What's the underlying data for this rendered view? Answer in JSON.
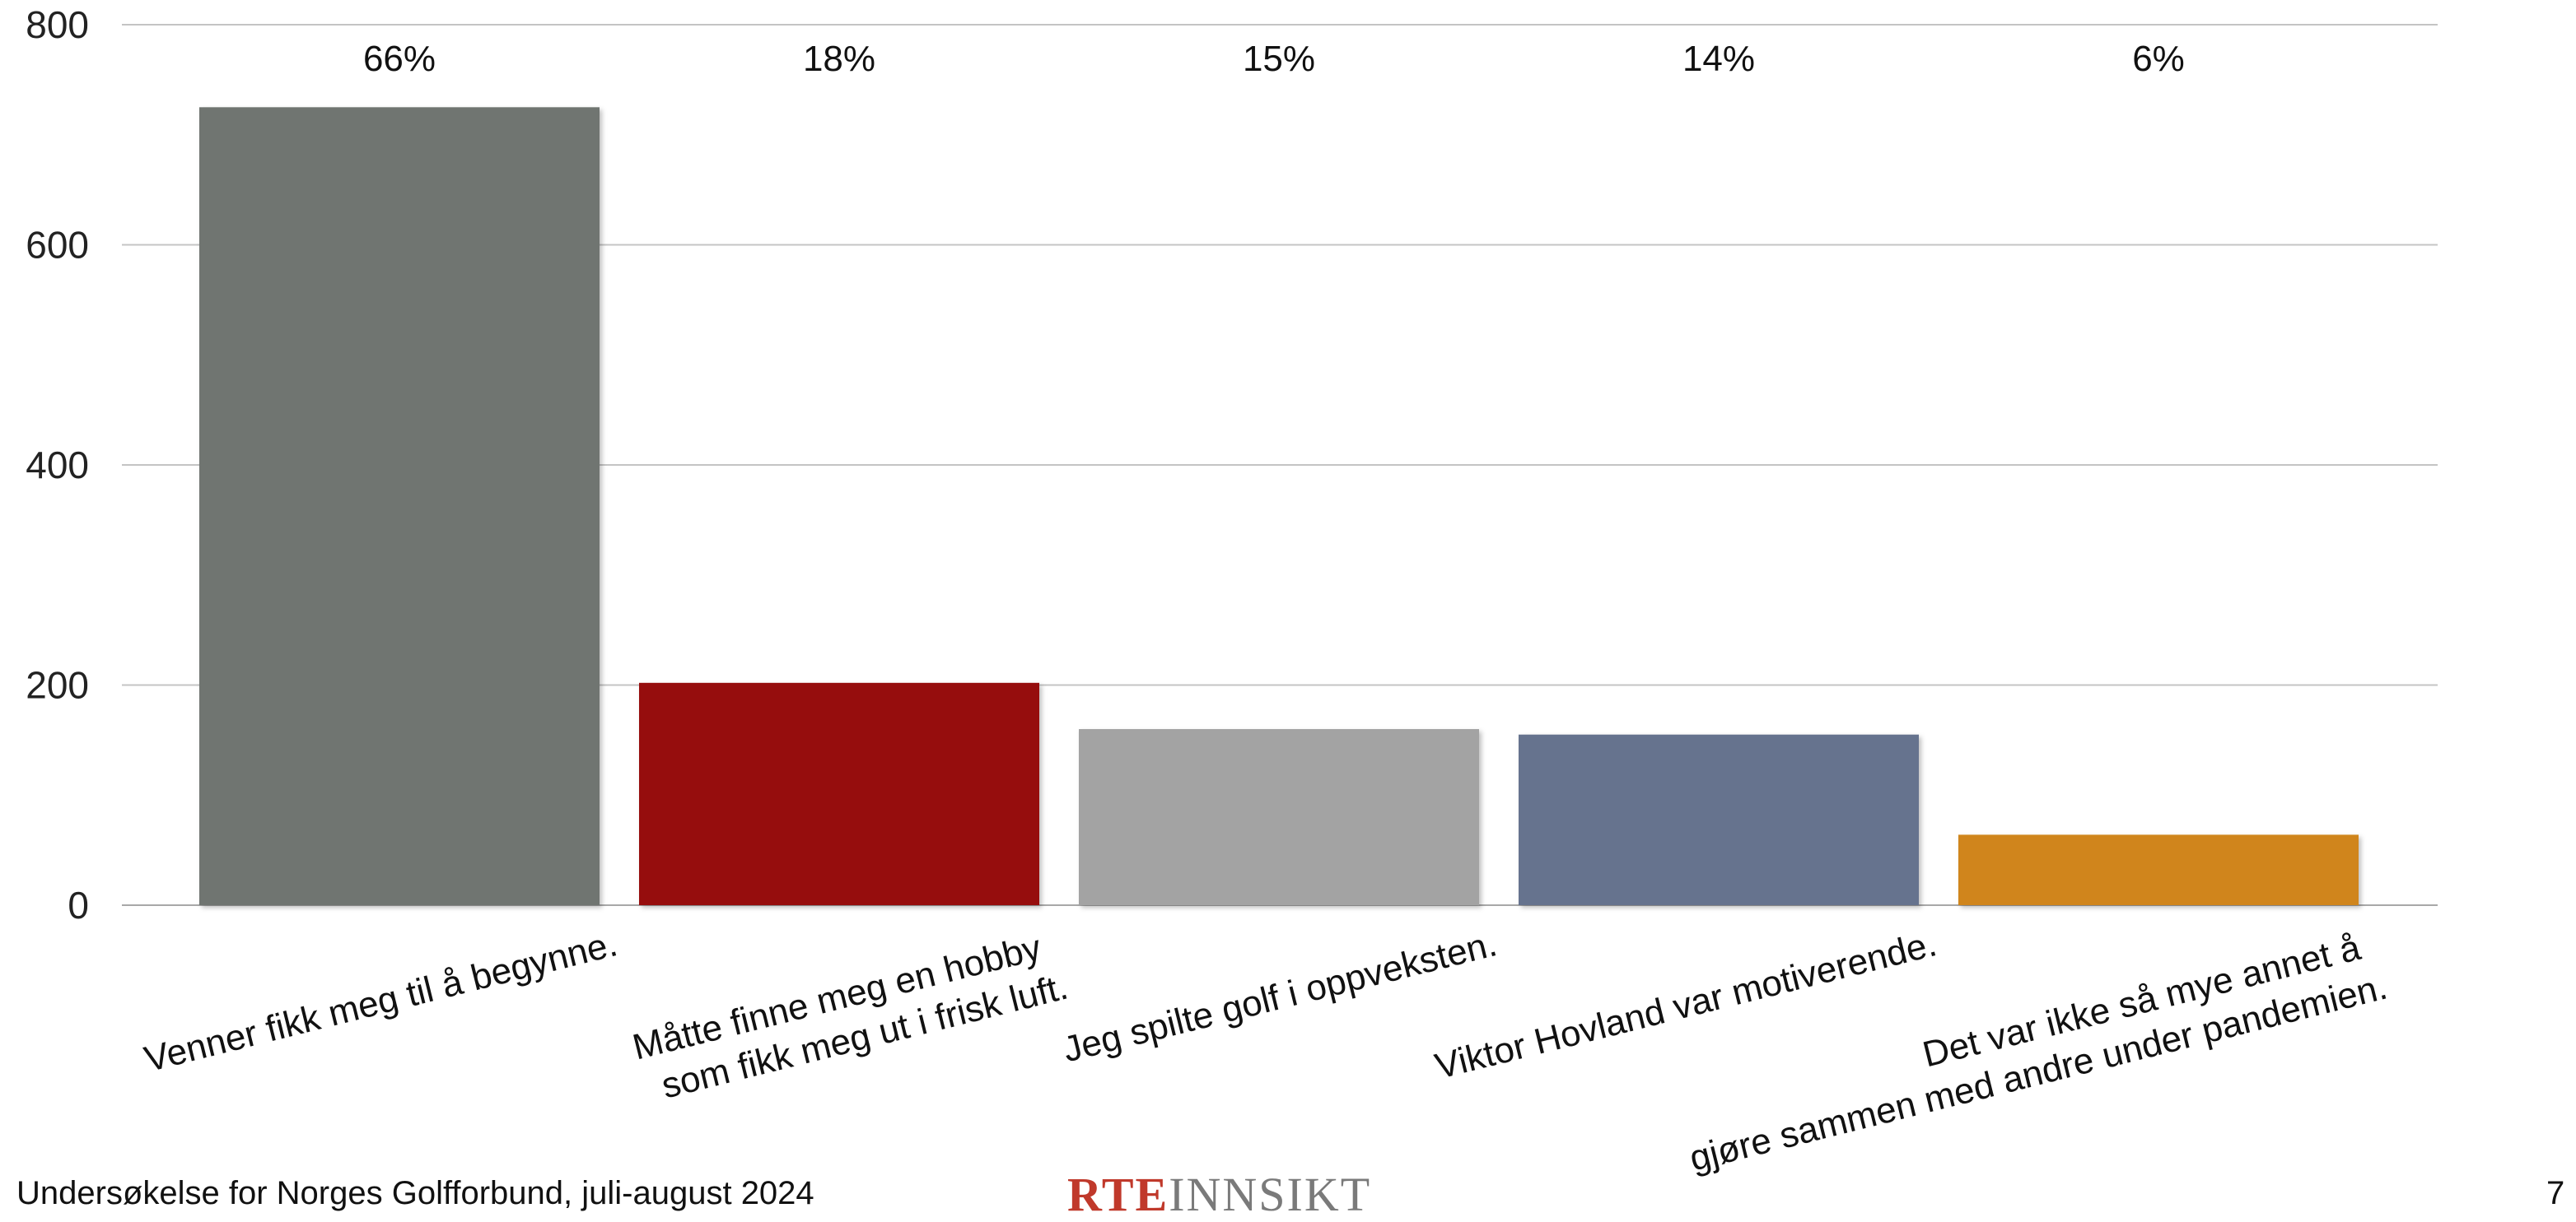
{
  "chart_data": {
    "type": "bar",
    "categories": [
      [
        "Venner fikk meg til å begynne."
      ],
      [
        "Måtte finne meg en hobby",
        "som fikk meg ut i frisk luft."
      ],
      [
        "Jeg spilte golf i oppveksten."
      ],
      [
        "Viktor Hovland var motiverende."
      ],
      [
        "Det var ikke så mye annet å",
        "gjøre sammen med andre under pandemien."
      ]
    ],
    "values": [
      725,
      202,
      160,
      155,
      64
    ],
    "data_labels": [
      "66%",
      "18%",
      "15%",
      "14%",
      "6%"
    ],
    "colors": [
      "#6f7571",
      "#960808",
      "#a3a3a3",
      "#66738e",
      "#d0851c"
    ],
    "ylim": [
      0,
      800
    ],
    "yticks": [
      0,
      200,
      400,
      600,
      800
    ],
    "grid": true,
    "title": "",
    "xlabel": "",
    "ylabel": ""
  },
  "footer": {
    "survey_text": "Undersøkelse for Norges Golfforbund, juli-august 2024",
    "logo_brand": "RTE",
    "logo_word": "INNSIKT",
    "page_number": "7"
  }
}
